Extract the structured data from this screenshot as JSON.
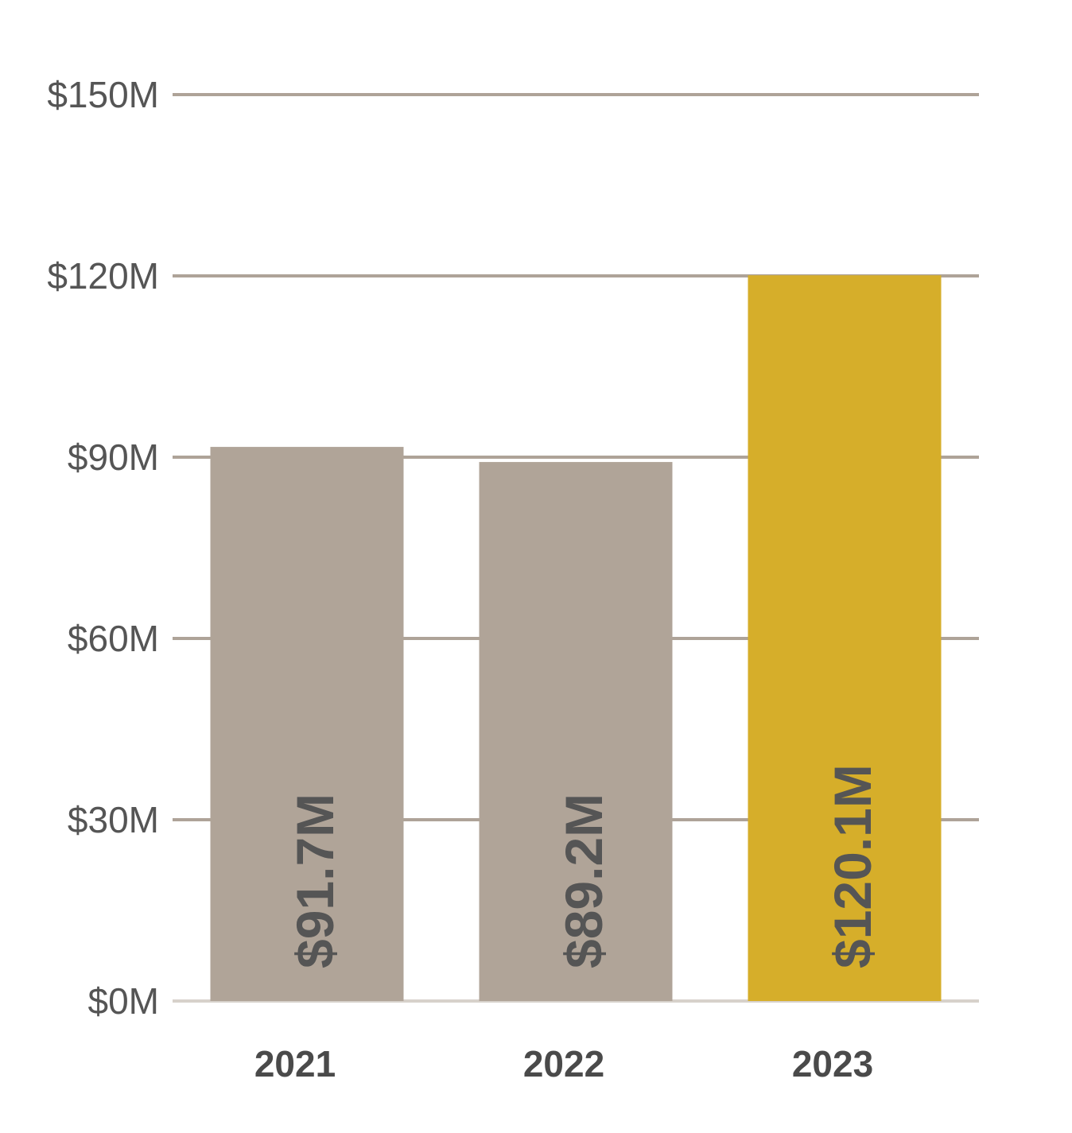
{
  "chart_data": {
    "type": "bar",
    "categories": [
      "2021",
      "2022",
      "2023"
    ],
    "values": [
      91.7,
      89.2,
      120.1
    ],
    "value_labels": [
      "$91.7M",
      "$89.2M",
      "$120.1M"
    ],
    "title": "",
    "xlabel": "",
    "ylabel": "",
    "ylim": [
      0,
      150
    ],
    "yticks": [
      0,
      30,
      60,
      90,
      120,
      150
    ],
    "ytick_labels": [
      "$0M",
      "$30M",
      "$60M",
      "$90M",
      "$120M",
      "$150M"
    ],
    "grid": true,
    "legend": "none",
    "colors": {
      "bars": [
        "#B0A498",
        "#B0A498",
        "#D6AE2A"
      ],
      "grid": "#AEA398",
      "baseline": "#D7D1CB",
      "tick_text": "#555555",
      "category_text": "#4a4a4a",
      "label_text": "#555555"
    }
  }
}
